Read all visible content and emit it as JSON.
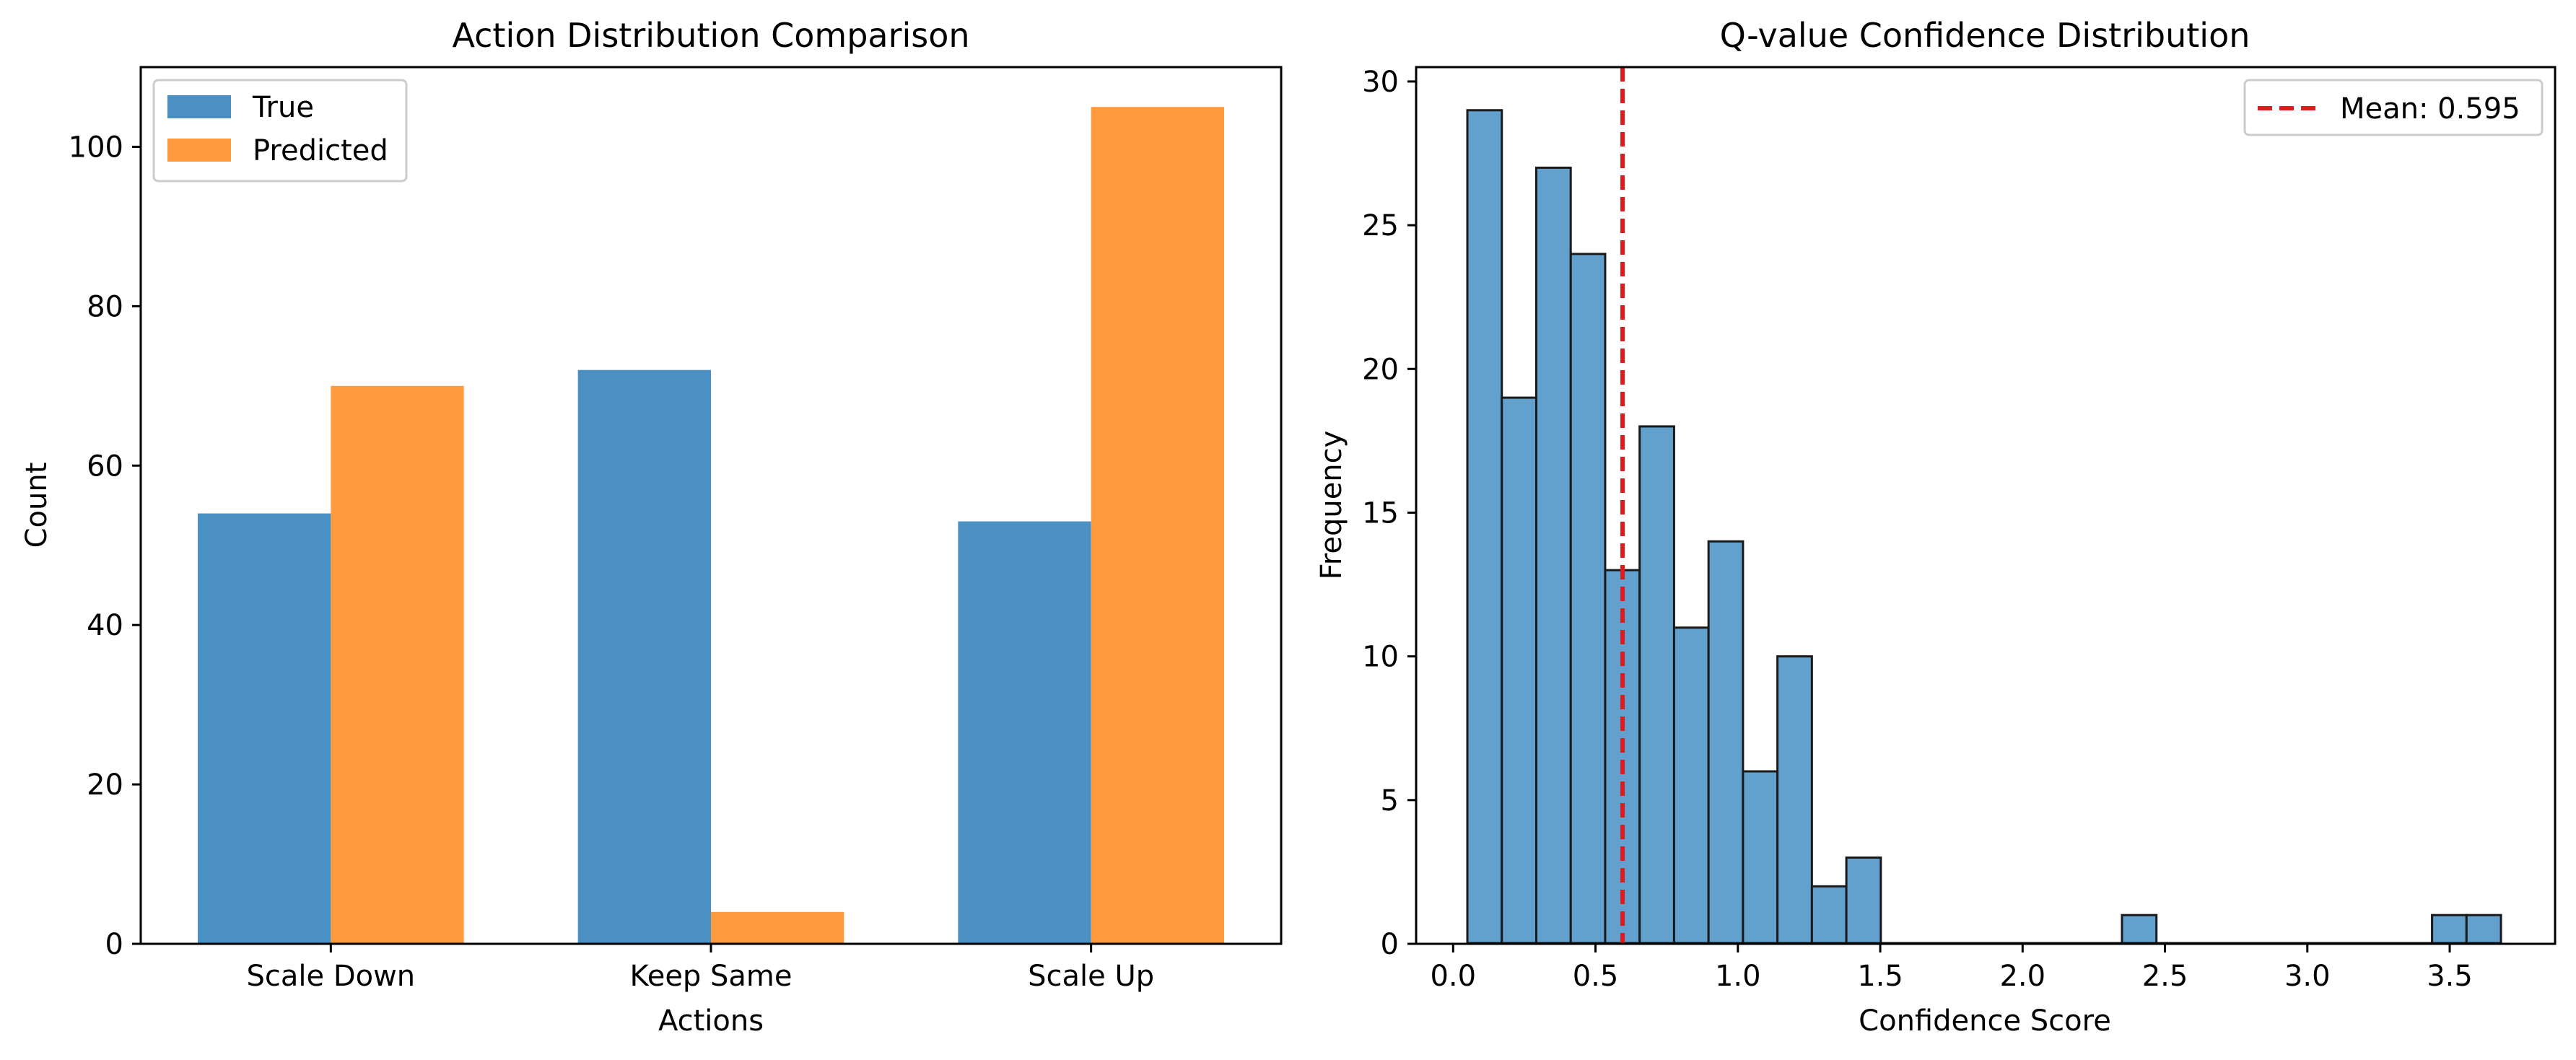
{
  "chart_data": [
    {
      "type": "bar",
      "title": "Action Distribution Comparison",
      "xlabel": "Actions",
      "ylabel": "Count",
      "categories": [
        "Scale Down",
        "Keep Same",
        "Scale Up"
      ],
      "series": [
        {
          "name": "True",
          "color": "#4a90c3",
          "values": [
            54,
            72,
            53
          ]
        },
        {
          "name": "Predicted",
          "color": "#ff9a3f",
          "values": [
            70,
            4,
            105
          ]
        }
      ],
      "ylim": [
        0,
        110
      ],
      "yticks": [
        0,
        20,
        40,
        60,
        80,
        100
      ],
      "legend": "top-left",
      "grid": false
    },
    {
      "type": "bar",
      "subtype": "histogram",
      "title": "Q-value Confidence Distribution",
      "xlabel": "Confidence Score",
      "ylabel": "Frequency",
      "bin_start": 0.05,
      "bin_width": 0.121,
      "counts": [
        29,
        19,
        27,
        24,
        13,
        18,
        11,
        14,
        6,
        10,
        2,
        3,
        0,
        0,
        0,
        0,
        0,
        0,
        0,
        1,
        0,
        0,
        0,
        0,
        0,
        0,
        0,
        0,
        1,
        1
      ],
      "color": "#62a1cd",
      "edge_color": "#1a1a1a",
      "xlim": [
        -0.13,
        3.87
      ],
      "ylim": [
        0,
        30.5
      ],
      "xticks": [
        0.0,
        0.5,
        1.0,
        1.5,
        2.0,
        2.5,
        3.0,
        3.5
      ],
      "xtick_labels": [
        "0.0",
        "0.5",
        "1.0",
        "1.5",
        "2.0",
        "2.5",
        "3.0",
        "3.5"
      ],
      "yticks": [
        0,
        5,
        10,
        15,
        20,
        25,
        30
      ],
      "mean_line": {
        "value": 0.595,
        "label": "Mean: 0.595",
        "color": "#e31a1c"
      },
      "legend": "top-right",
      "grid": false
    }
  ]
}
